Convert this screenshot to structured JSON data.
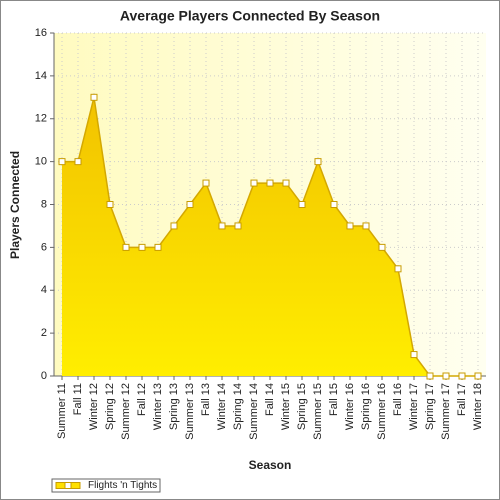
{
  "chart_data": {
    "type": "area",
    "title": "Average Players Connected By Season",
    "x_label": "Season",
    "y_label": "Players Connected",
    "categories": [
      "Summer 11",
      "Fall 11",
      "Winter 12",
      "Spring 12",
      "Summer 12",
      "Fall 12",
      "Winter 13",
      "Spring 13",
      "Summer 13",
      "Fall 13",
      "Winter 14",
      "Spring 14",
      "Summer 14",
      "Fall 14",
      "Winter 15",
      "Spring 15",
      "Summer 15",
      "Fall 15",
      "Winter 16",
      "Spring 16",
      "Summer 16",
      "Fall 16",
      "Winter 17",
      "Spring 17",
      "Summer 17",
      "Fall 17",
      "Winter 18"
    ],
    "series": [
      {
        "name": "Flights 'n Tights",
        "color": "#ffe000",
        "values": [
          10,
          10,
          13,
          8,
          6,
          6,
          6,
          7,
          8,
          9,
          7,
          7,
          9,
          9,
          9,
          8,
          10,
          8,
          7,
          7,
          6,
          5,
          1,
          0,
          0,
          0,
          0
        ]
      }
    ],
    "ylim": [
      0,
      16
    ],
    "yticks": [
      0,
      2,
      4,
      6,
      8,
      10,
      12,
      14,
      16
    ],
    "grid": true,
    "legend": "bottom-left"
  }
}
